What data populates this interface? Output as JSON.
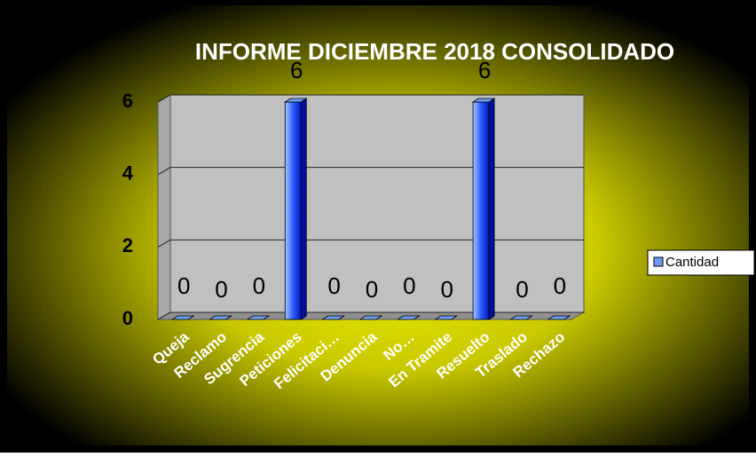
{
  "chart_data": {
    "type": "bar3d",
    "title": "INFORME DICIEMBRE 2018 CONSOLIDADO",
    "categories": [
      "Queja",
      "Reclamo",
      "Sugrencia",
      "Peticiones",
      "Felicitaci…",
      "Denuncia",
      "No…",
      "En Tramite",
      "Resuelto",
      "Traslado",
      "Rechazo"
    ],
    "series": [
      {
        "name": "Cantidad",
        "color": "#6f9cf2",
        "values": [
          0,
          0,
          0,
          6,
          0,
          0,
          0,
          0,
          6,
          0,
          0
        ]
      }
    ],
    "ylim": [
      0,
      6
    ],
    "yticks": [
      0,
      2,
      4,
      6
    ],
    "grid": true,
    "legend": "right"
  }
}
